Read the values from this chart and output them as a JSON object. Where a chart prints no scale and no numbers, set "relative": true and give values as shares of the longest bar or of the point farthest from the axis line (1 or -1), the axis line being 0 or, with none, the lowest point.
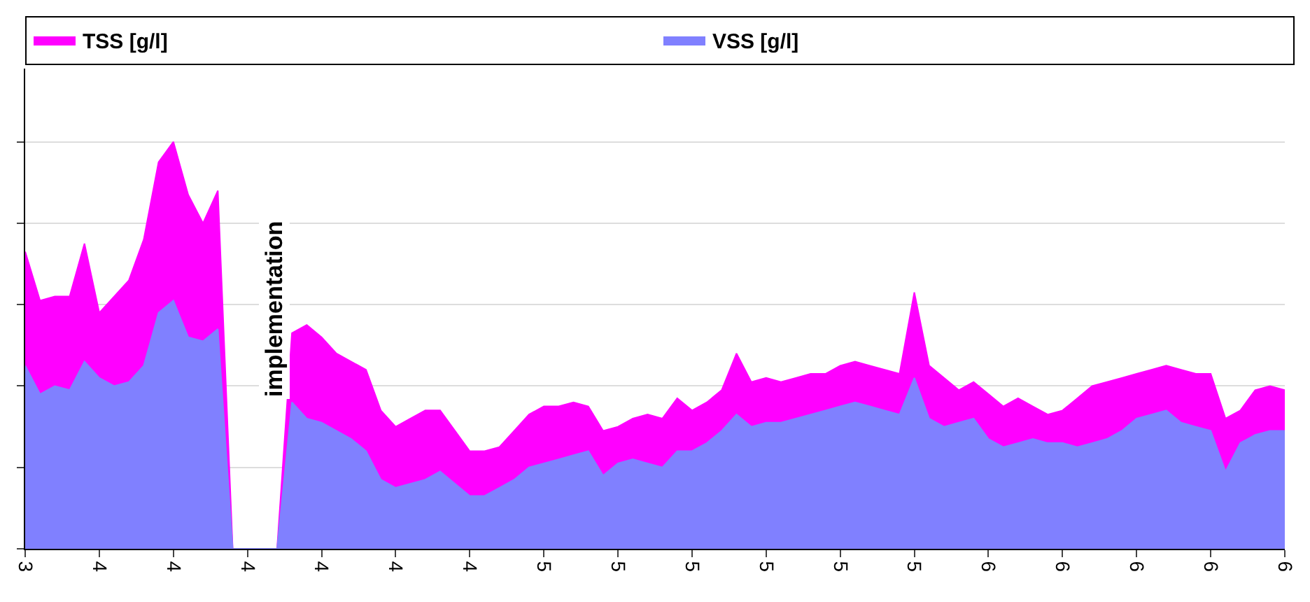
{
  "chart_data": {
    "type": "area",
    "relative": true,
    "legend": "top",
    "grid": "y",
    "categories": [
      "3",
      null,
      null,
      null,
      null,
      "4",
      null,
      null,
      null,
      null,
      "4",
      null,
      null,
      null,
      null,
      "4",
      null,
      null,
      null,
      null,
      "4",
      null,
      null,
      null,
      null,
      "4",
      null,
      null,
      null,
      null,
      "4",
      null,
      null,
      null,
      null,
      "5",
      null,
      null,
      null,
      null,
      "5",
      null,
      null,
      null,
      null,
      "5",
      null,
      null,
      null,
      null,
      "5",
      null,
      null,
      null,
      null,
      "5",
      null,
      null,
      null,
      null,
      "5",
      null,
      null,
      null,
      null,
      "6",
      null,
      null,
      null,
      null,
      "6",
      null,
      null,
      null,
      null,
      "6",
      null,
      null,
      null,
      null,
      "6",
      null,
      null,
      null,
      null,
      "6"
    ],
    "annotations": [
      "implementation"
    ],
    "series": [
      {
        "name": "TSS [g/l]",
        "color": "#ff00ff",
        "values": [
          0.73,
          0.61,
          0.62,
          0.62,
          0.75,
          0.58,
          0.62,
          0.66,
          0.76,
          0.95,
          1,
          0.87,
          0.8,
          0.88,
          0,
          0,
          0,
          0,
          0.53,
          0.55,
          0.52,
          0.48,
          0.46,
          0.44,
          0.34,
          0.3,
          0.32,
          0.34,
          0.34,
          0.29,
          0.24,
          0.24,
          0.25,
          0.29,
          0.33,
          0.35,
          0.35,
          0.36,
          0.35,
          0.29,
          0.3,
          0.32,
          0.33,
          0.32,
          0.37,
          0.34,
          0.36,
          0.39,
          0.48,
          0.41,
          0.42,
          0.41,
          0.42,
          0.43,
          0.43,
          0.45,
          0.46,
          0.45,
          0.44,
          0.43,
          0.63,
          0.45,
          0.42,
          0.39,
          0.41,
          0.38,
          0.35,
          0.37,
          0.35,
          0.33,
          0.34,
          0.37,
          0.4,
          0.41,
          0.42,
          0.43,
          0.44,
          0.45,
          0.44,
          0.43,
          0.43,
          0.32,
          0.34,
          0.39,
          0.4,
          0.39
        ]
      },
      {
        "name": "VSS [g/l]",
        "color": "#8080ff",
        "values": [
          0.45,
          0.38,
          0.4,
          0.39,
          0.46,
          0.42,
          0.4,
          0.41,
          0.45,
          0.58,
          0.61,
          0.52,
          0.51,
          0.54,
          0,
          0,
          0,
          0,
          0.36,
          0.32,
          0.31,
          0.29,
          0.27,
          0.24,
          0.17,
          0.15,
          0.16,
          0.17,
          0.19,
          0.16,
          0.13,
          0.13,
          0.15,
          0.17,
          0.2,
          0.21,
          0.22,
          0.23,
          0.24,
          0.18,
          0.21,
          0.22,
          0.21,
          0.2,
          0.24,
          0.24,
          0.26,
          0.29,
          0.33,
          0.3,
          0.31,
          0.31,
          0.32,
          0.33,
          0.34,
          0.35,
          0.36,
          0.35,
          0.34,
          0.33,
          0.42,
          0.32,
          0.3,
          0.31,
          0.32,
          0.27,
          0.25,
          0.26,
          0.27,
          0.26,
          0.26,
          0.25,
          0.26,
          0.27,
          0.29,
          0.32,
          0.33,
          0.34,
          0.31,
          0.3,
          0.29,
          0.19,
          0.26,
          0.28,
          0.29,
          0.29
        ]
      }
    ]
  }
}
